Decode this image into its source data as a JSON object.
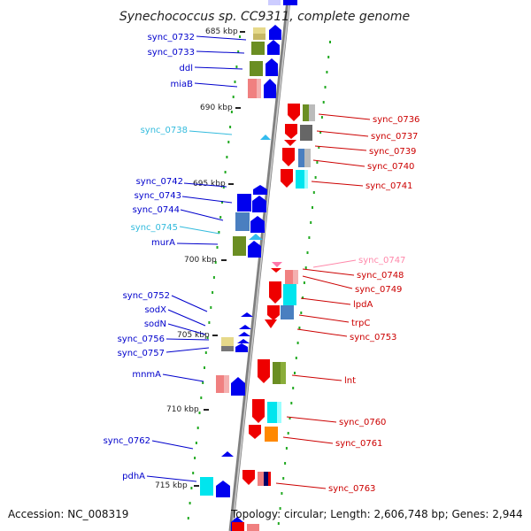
{
  "title": "Synechococcus sp. CC9311, complete genome",
  "accession": "Accession: NC_008319",
  "topology": "Topology: circular; Length: 2,606,748 bp; Genes: 2,944",
  "kbp_marks": [
    "685 kbp",
    "690 kbp",
    "695 kbp",
    "700 kbp",
    "705 kbp",
    "710 kbp",
    "715 kbp"
  ],
  "genes_left": [
    "sync_0732",
    "sync_0733",
    "ddl",
    "miaB",
    "sync_0738",
    "sync_0742",
    "sync_0743",
    "sync_0744",
    "sync_0745",
    "murA",
    "sync_0752",
    "sodX",
    "sodN",
    "sync_0756",
    "sync_0757",
    "mnmA",
    "sync_0762",
    "pdhA"
  ],
  "genes_right": [
    "sync_0736",
    "sync_0737",
    "sync_0739",
    "sync_0740",
    "sync_0741",
    "sync_0747",
    "sync_0748",
    "sync_0749",
    "lpdA",
    "trpC",
    "sync_0753",
    "lnt",
    "sync_0760",
    "sync_0761",
    "sync_0763"
  ],
  "colors": {
    "forward_strand": "#0000ff",
    "reverse_strand": "#ff0000",
    "label_cyan": "#33bbdd",
    "label_pink": "#ff88aa",
    "backbone": "#888888",
    "tick_green": "#229922"
  }
}
